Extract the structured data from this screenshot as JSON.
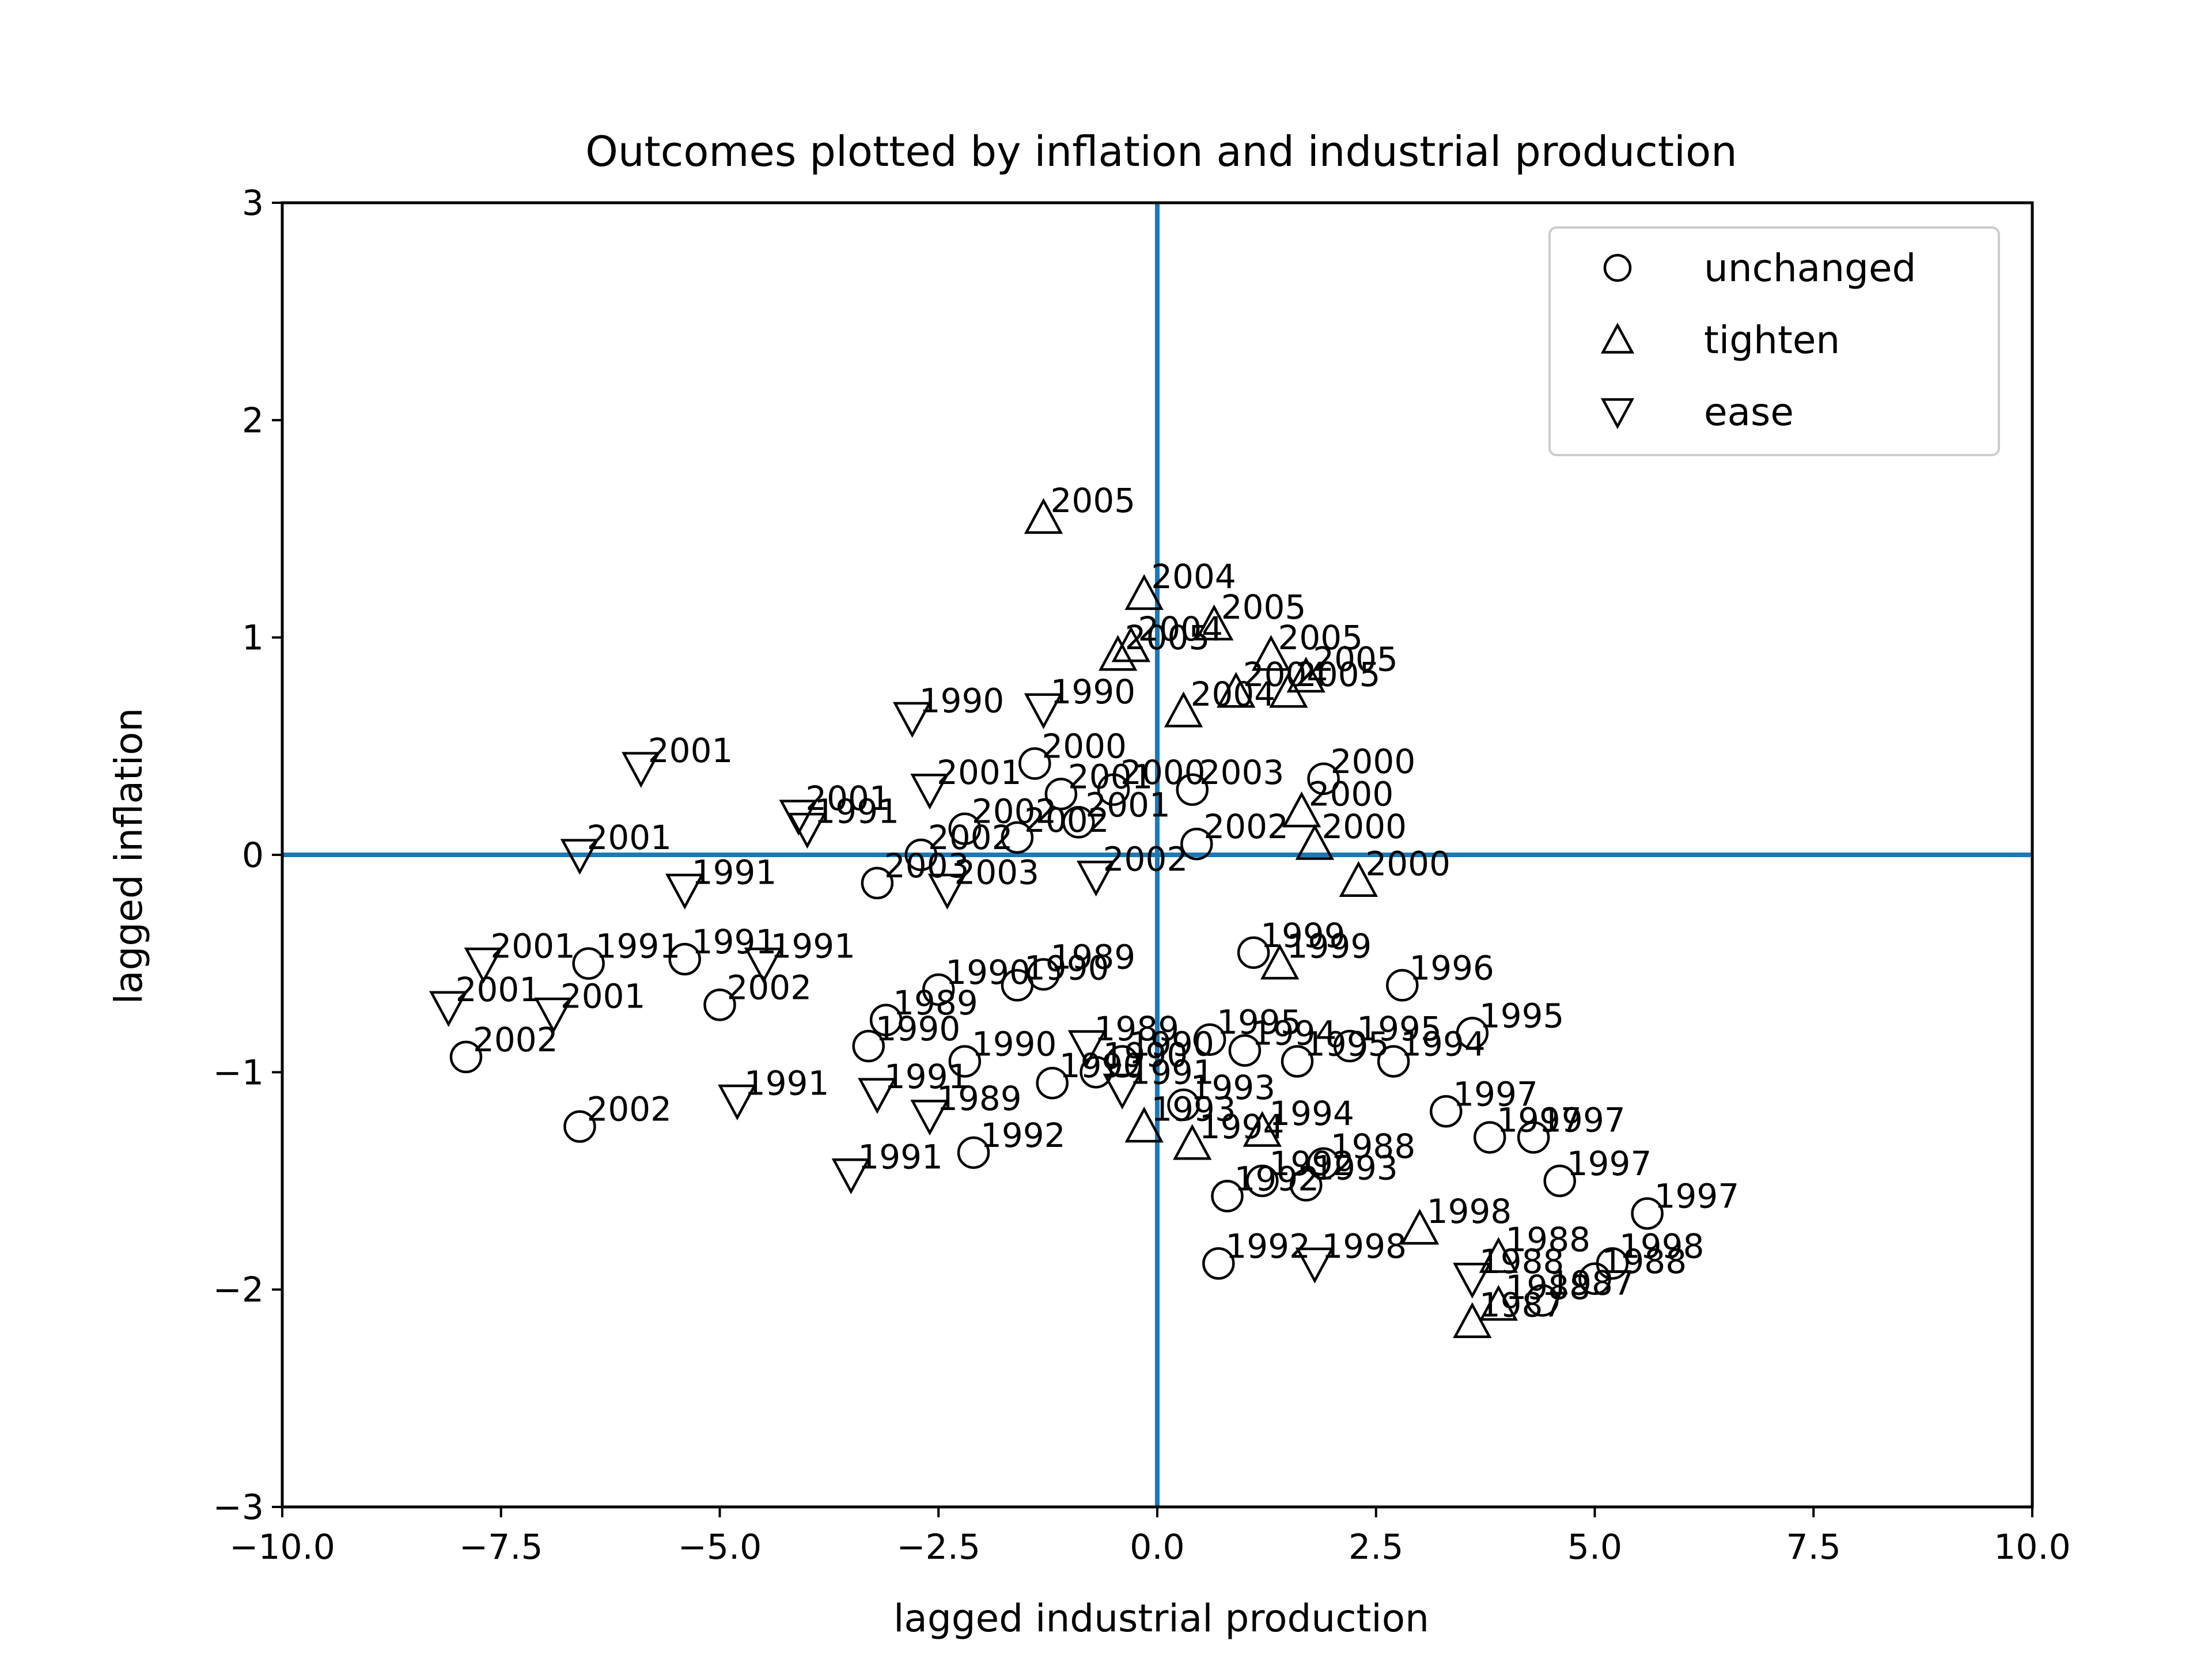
{
  "chart_data": {
    "type": "scatter",
    "title": "Outcomes plotted by inflation and industrial production",
    "xlabel": "lagged industrial production",
    "ylabel": "lagged inflation",
    "xlim": [
      -10,
      10
    ],
    "ylim": [
      -3,
      3
    ],
    "x_ticks": [
      -10,
      -7.5,
      -5,
      -2.5,
      0,
      2.5,
      5,
      7.5,
      10
    ],
    "x_tick_labels": [
      "−10.0",
      "−7.5",
      "−5.0",
      "−2.5",
      "0.0",
      "2.5",
      "5.0",
      "7.5",
      "10.0"
    ],
    "y_ticks": [
      -3,
      -2,
      -1,
      0,
      1,
      2,
      3
    ],
    "y_tick_labels": [
      "−3",
      "−2",
      "−1",
      "0",
      "1",
      "2",
      "3"
    ],
    "grid": false,
    "reference_lines": {
      "x": 0,
      "y": 0,
      "color": "#1f77b4"
    },
    "legend": {
      "placement": "top-right",
      "entries": [
        {
          "marker": "circle",
          "label": "unchanged"
        },
        {
          "marker": "triangle-up",
          "label": "tighten"
        },
        {
          "marker": "triangle-down",
          "label": "ease"
        }
      ]
    },
    "series": [
      {
        "name": "unchanged",
        "marker": "circle",
        "points": [
          {
            "x": -7.9,
            "y": -0.93,
            "label": "2002"
          },
          {
            "x": -6.6,
            "y": -1.25,
            "label": "2002"
          },
          {
            "x": -6.5,
            "y": -0.5,
            "label": "1991"
          },
          {
            "x": -5.4,
            "y": -0.48,
            "label": "1991"
          },
          {
            "x": -5.0,
            "y": -0.69,
            "label": "2002"
          },
          {
            "x": -3.2,
            "y": -0.13,
            "label": "2003"
          },
          {
            "x": -2.7,
            "y": 0.0,
            "label": "2002"
          },
          {
            "x": -2.2,
            "y": 0.12,
            "label": "2002"
          },
          {
            "x": -1.6,
            "y": 0.08,
            "label": "2002"
          },
          {
            "x": -1.4,
            "y": 0.42,
            "label": "2000"
          },
          {
            "x": -1.1,
            "y": 0.28,
            "label": "2001"
          },
          {
            "x": -0.9,
            "y": 0.15,
            "label": "2001"
          },
          {
            "x": -0.5,
            "y": 0.3,
            "label": "2000"
          },
          {
            "x": 0.4,
            "y": 0.3,
            "label": "2003"
          },
          {
            "x": 0.45,
            "y": 0.05,
            "label": "2002"
          },
          {
            "x": 1.9,
            "y": 0.35,
            "label": "2000"
          },
          {
            "x": -3.3,
            "y": -0.88,
            "label": "1990"
          },
          {
            "x": -3.1,
            "y": -0.76,
            "label": "1989"
          },
          {
            "x": -2.5,
            "y": -0.62,
            "label": "1990"
          },
          {
            "x": -2.2,
            "y": -0.95,
            "label": "1990"
          },
          {
            "x": -1.6,
            "y": -0.6,
            "label": "1990"
          },
          {
            "x": -1.3,
            "y": -0.55,
            "label": "1989"
          },
          {
            "x": -1.2,
            "y": -1.05,
            "label": "1990"
          },
          {
            "x": -0.7,
            "y": -1.0,
            "label": "1990"
          },
          {
            "x": -0.4,
            "y": -0.95,
            "label": "1990"
          },
          {
            "x": -2.1,
            "y": -1.37,
            "label": "1992"
          },
          {
            "x": 0.3,
            "y": -1.15,
            "label": "1993"
          },
          {
            "x": 0.8,
            "y": -1.57,
            "label": "1992"
          },
          {
            "x": 0.7,
            "y": -1.88,
            "label": "1992"
          },
          {
            "x": 1.1,
            "y": -0.45,
            "label": "1999"
          },
          {
            "x": 1.2,
            "y": -1.5,
            "label": "1992"
          },
          {
            "x": 1.7,
            "y": -1.52,
            "label": "1993"
          },
          {
            "x": 1.9,
            "y": -1.42,
            "label": "1988"
          },
          {
            "x": 2.8,
            "y": -0.6,
            "label": "1996"
          },
          {
            "x": 3.3,
            "y": -1.18,
            "label": "1997"
          },
          {
            "x": 3.8,
            "y": -1.3,
            "label": "1997"
          },
          {
            "x": 4.3,
            "y": -1.3,
            "label": "1997"
          },
          {
            "x": 4.6,
            "y": -1.5,
            "label": "1997"
          },
          {
            "x": 5.6,
            "y": -1.65,
            "label": "1997"
          },
          {
            "x": 5.2,
            "y": -1.88,
            "label": "1998"
          },
          {
            "x": 4.4,
            "y": -2.05,
            "label": "1987"
          },
          {
            "x": 5.0,
            "y": -1.95,
            "label": "1988"
          },
          {
            "x": 0.6,
            "y": -0.85,
            "label": "1995"
          },
          {
            "x": 1.0,
            "y": -0.9,
            "label": "1994"
          },
          {
            "x": 1.6,
            "y": -0.95,
            "label": "1995"
          },
          {
            "x": 2.2,
            "y": -0.88,
            "label": "1995"
          },
          {
            "x": 2.7,
            "y": -0.95,
            "label": "1994"
          },
          {
            "x": 3.6,
            "y": -0.82,
            "label": "1995"
          }
        ]
      },
      {
        "name": "tighten",
        "marker": "triangle-up",
        "points": [
          {
            "x": -1.3,
            "y": 1.55,
            "label": "2005"
          },
          {
            "x": -0.15,
            "y": 1.2,
            "label": "2004"
          },
          {
            "x": 0.65,
            "y": 1.06,
            "label": "2005"
          },
          {
            "x": -0.45,
            "y": 0.92,
            "label": "2005"
          },
          {
            "x": -0.3,
            "y": 0.96,
            "label": "2004"
          },
          {
            "x": 1.3,
            "y": 0.92,
            "label": "2005"
          },
          {
            "x": 0.9,
            "y": 0.75,
            "label": "2004"
          },
          {
            "x": 1.5,
            "y": 0.75,
            "label": "2005"
          },
          {
            "x": 0.3,
            "y": 0.66,
            "label": "2004"
          },
          {
            "x": 1.7,
            "y": 0.82,
            "label": "2005"
          },
          {
            "x": 1.65,
            "y": 0.2,
            "label": "2000"
          },
          {
            "x": 1.8,
            "y": 0.05,
            "label": "2000"
          },
          {
            "x": 2.3,
            "y": -0.12,
            "label": "2000"
          },
          {
            "x": 1.4,
            "y": -0.5,
            "label": "1999"
          },
          {
            "x": -0.15,
            "y": -1.25,
            "label": "1993"
          },
          {
            "x": 0.4,
            "y": -1.33,
            "label": "1994"
          },
          {
            "x": 1.2,
            "y": -1.27,
            "label": "1994"
          },
          {
            "x": 3.0,
            "y": -1.72,
            "label": "1998"
          },
          {
            "x": 3.9,
            "y": -1.85,
            "label": "1988"
          },
          {
            "x": 3.6,
            "y": -2.15,
            "label": "1987"
          },
          {
            "x": 3.9,
            "y": -2.07,
            "label": "1988"
          }
        ]
      },
      {
        "name": "ease",
        "marker": "triangle-down",
        "points": [
          {
            "x": -5.9,
            "y": 0.4,
            "label": "2001"
          },
          {
            "x": -6.6,
            "y": 0.0,
            "label": "2001"
          },
          {
            "x": -4.1,
            "y": 0.18,
            "label": "2001"
          },
          {
            "x": -4.0,
            "y": 0.12,
            "label": "1991"
          },
          {
            "x": -2.6,
            "y": 0.3,
            "label": "2001"
          },
          {
            "x": -2.8,
            "y": 0.63,
            "label": "1990"
          },
          {
            "x": -1.3,
            "y": 0.67,
            "label": "1990"
          },
          {
            "x": -5.4,
            "y": -0.16,
            "label": "1991"
          },
          {
            "x": -2.4,
            "y": -0.16,
            "label": "2003"
          },
          {
            "x": -0.7,
            "y": -0.1,
            "label": "2002"
          },
          {
            "x": -7.7,
            "y": -0.5,
            "label": "2001"
          },
          {
            "x": -8.1,
            "y": -0.7,
            "label": "2001"
          },
          {
            "x": -6.9,
            "y": -0.73,
            "label": "2001"
          },
          {
            "x": -4.5,
            "y": -0.5,
            "label": "1991"
          },
          {
            "x": -4.8,
            "y": -1.13,
            "label": "1991"
          },
          {
            "x": -3.5,
            "y": -1.47,
            "label": "1991"
          },
          {
            "x": -3.2,
            "y": -1.1,
            "label": "1991"
          },
          {
            "x": -2.6,
            "y": -1.2,
            "label": "1989"
          },
          {
            "x": -0.8,
            "y": -0.88,
            "label": "1989"
          },
          {
            "x": -0.4,
            "y": -1.08,
            "label": "1991"
          },
          {
            "x": 1.8,
            "y": -1.88,
            "label": "1998"
          },
          {
            "x": 3.6,
            "y": -1.95,
            "label": "1988"
          }
        ]
      }
    ]
  }
}
